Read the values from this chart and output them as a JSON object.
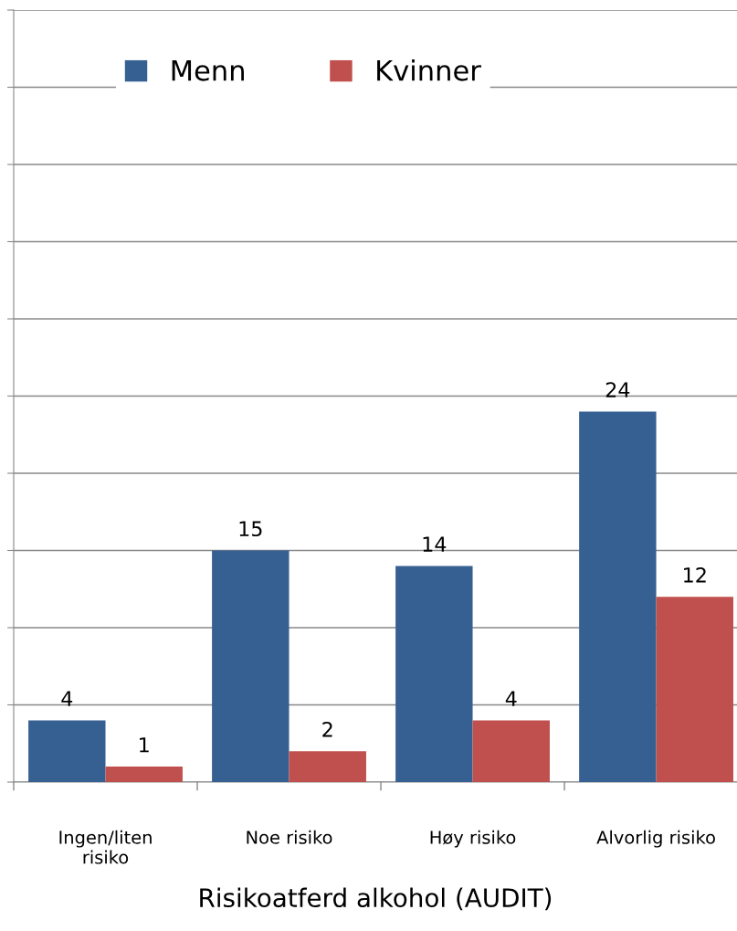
{
  "chart_data": {
    "type": "bar",
    "xlabel": "Risikoatferd alkohol (AUDIT)",
    "categories": [
      "Ingen/liten\nrisiko",
      "Noe risiko",
      "Høy risiko",
      "Alvorlig risiko"
    ],
    "series": [
      {
        "name": "Menn",
        "color": "#376092",
        "values": [
          4,
          15,
          14,
          24
        ]
      },
      {
        "name": "Kvinner",
        "color": "#c0504d",
        "values": [
          1,
          2,
          4,
          12
        ]
      }
    ],
    "ylim": [
      0,
      50
    ],
    "yticks": [
      {
        "value": 0,
        "label": null
      },
      {
        "value": 5,
        "label": null
      },
      {
        "value": 10,
        "label": null
      },
      {
        "value": 15,
        "label": null
      },
      {
        "value": 20,
        "label": null
      },
      {
        "value": 25,
        "label": null
      },
      {
        "value": 30,
        "label": null
      },
      {
        "value": 35,
        "label": null
      },
      {
        "value": 40,
        "label": null
      },
      {
        "value": 45,
        "label": null
      },
      {
        "value": 50,
        "label": null
      }
    ],
    "tick_labels": "x",
    "grid": "y",
    "legend": "top",
    "data_labels": true
  }
}
